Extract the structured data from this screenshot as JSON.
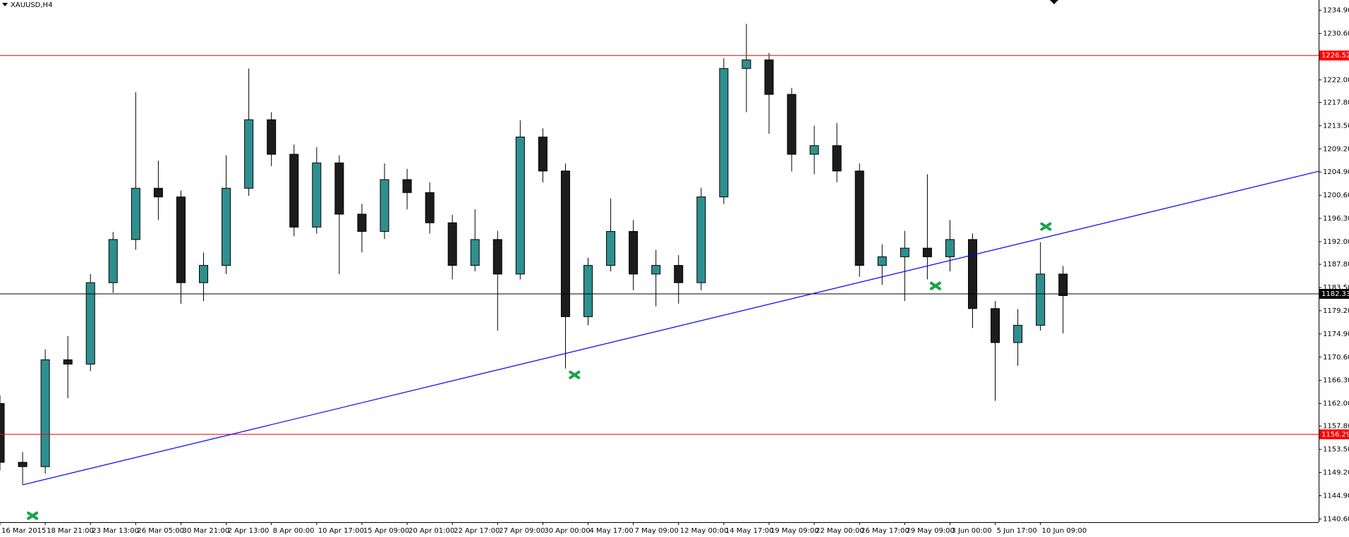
{
  "chart_data": {
    "type": "candlestick",
    "title": "XAUUSD,H4",
    "categories": [
      "16 Mar 2015",
      "18 Mar 21:00",
      "23 Mar 13:00",
      "26 Mar 05:00",
      "30 Mar 21:00",
      "2 Apr 13:00",
      "8 Apr 00:00",
      "10 Apr 17:00",
      "15 Apr 09:00",
      "20 Apr 01:00",
      "22 Apr 17:00",
      "27 Apr 09:00",
      "30 Apr 00:00",
      "4 May 17:00",
      "7 May 09:00",
      "12 May 00:00",
      "14 May 17:00",
      "19 May 09:00",
      "22 May 00:00",
      "26 May 17:00",
      "29 May 09:00",
      "3 Jun 00:00",
      "5 Jun 17:00",
      "10 Jun 09:00"
    ],
    "x": [
      0,
      0.5,
      1,
      1.5,
      2,
      2.5,
      3,
      3.5,
      4,
      4.5,
      5,
      5.5,
      6,
      6.5,
      7,
      7.5,
      8,
      8.5,
      9,
      9.5,
      10,
      10.5,
      11,
      11.5,
      12,
      12.5,
      13,
      13.5,
      14,
      14.5,
      15,
      15.5,
      16,
      16.5,
      17,
      17.5,
      18,
      18.5,
      19,
      19.5,
      20,
      20.5,
      21,
      21.5,
      22,
      22.5,
      23,
      23.5
    ],
    "open": [
      1162.0,
      1151.1,
      1150.3,
      1170.1,
      1169.3,
      1184.4,
      1192.4,
      1201.9,
      1200.3,
      1184.4,
      1187.6,
      1201.9,
      1214.6,
      1208.2,
      1194.7,
      1206.6,
      1197.1,
      1193.9,
      1203.5,
      1201.1,
      1195.5,
      1187.6,
      1192.4,
      1186.0,
      1211.4,
      1205.1,
      1178.1,
      1187.6,
      1193.9,
      1186.0,
      1187.6,
      1184.4,
      1200.3,
      1224.1,
      1225.7,
      1219.3,
      1208.2,
      1209.8,
      1205.1,
      1187.6,
      1189.2,
      1190.8,
      1189.2,
      1192.4,
      1179.6,
      1173.3,
      1176.5,
      1186.0
    ],
    "high": [
      1163.5,
      1153.0,
      1172.0,
      1174.5,
      1186.0,
      1193.8,
      1219.7,
      1207.0,
      1201.5,
      1190.0,
      1208.0,
      1224.1,
      1216.0,
      1210.0,
      1209.5,
      1208.0,
      1199.0,
      1206.5,
      1205.5,
      1203.0,
      1197.0,
      1198.0,
      1194.0,
      1214.5,
      1213.0,
      1206.5,
      1189.0,
      1200.0,
      1196.0,
      1190.5,
      1189.5,
      1202.0,
      1226.0,
      1232.4,
      1227.0,
      1220.5,
      1213.5,
      1214.0,
      1206.5,
      1191.5,
      1194.0,
      1204.5,
      1196.0,
      1193.5,
      1181.0,
      1179.5,
      1191.9,
      1187.5
    ],
    "low": [
      1149.6,
      1146.9,
      1149.0,
      1163.0,
      1168.0,
      1182.5,
      1190.5,
      1196.0,
      1180.5,
      1181.0,
      1186.0,
      1200.5,
      1206.0,
      1193.0,
      1193.5,
      1186.0,
      1190.0,
      1192.5,
      1198.0,
      1193.5,
      1185.0,
      1186.5,
      1175.5,
      1185.0,
      1203.0,
      1168.5,
      1176.5,
      1186.5,
      1183.0,
      1180.0,
      1180.5,
      1183.0,
      1199.0,
      1216.0,
      1212.0,
      1205.0,
      1204.5,
      1203.0,
      1185.5,
      1184.0,
      1181.0,
      1185.0,
      1186.5,
      1176.0,
      1162.5,
      1169.0,
      1175.5,
      1175.0
    ],
    "close": [
      1151.1,
      1150.3,
      1170.1,
      1169.3,
      1184.4,
      1192.4,
      1201.9,
      1200.3,
      1184.4,
      1187.6,
      1201.9,
      1214.6,
      1208.2,
      1194.7,
      1206.6,
      1197.1,
      1193.9,
      1203.5,
      1201.1,
      1195.5,
      1187.6,
      1192.4,
      1186.0,
      1211.4,
      1205.1,
      1178.1,
      1187.6,
      1193.9,
      1186.0,
      1187.6,
      1184.4,
      1200.3,
      1224.1,
      1225.7,
      1219.3,
      1208.2,
      1209.8,
      1205.1,
      1187.6,
      1189.2,
      1190.8,
      1189.2,
      1192.4,
      1179.6,
      1173.3,
      1176.5,
      1186.0,
      1182.0
    ],
    "up_color": "#2f8f8f",
    "down_color": "#1c1c1c",
    "xlim": [
      0,
      29.15
    ],
    "ylim": [
      1140.0,
      1236.8
    ],
    "yticks": [
      {
        "value": 1234.9,
        "label": "1234.90"
      },
      {
        "value": 1230.6,
        "label": "1230.60"
      },
      {
        "value": 1222.0,
        "label": "1222.00"
      },
      {
        "value": 1217.8,
        "label": "1217.80"
      },
      {
        "value": 1213.5,
        "label": "1213.50"
      },
      {
        "value": 1209.2,
        "label": "1209.20"
      },
      {
        "value": 1204.9,
        "label": "1204.90"
      },
      {
        "value": 1200.6,
        "label": "1200.60"
      },
      {
        "value": 1196.3,
        "label": "1196.30"
      },
      {
        "value": 1192.0,
        "label": "1192.00"
      },
      {
        "value": 1187.8,
        "label": "1187.80"
      },
      {
        "value": 1183.5,
        "label": "1183.50"
      },
      {
        "value": 1179.2,
        "label": "1179.20"
      },
      {
        "value": 1174.9,
        "label": "1174.90"
      },
      {
        "value": 1170.6,
        "label": "1170.60"
      },
      {
        "value": 1166.3,
        "label": "1166.30"
      },
      {
        "value": 1162.0,
        "label": "1162.00"
      },
      {
        "value": 1157.8,
        "label": "1157.80"
      },
      {
        "value": 1153.5,
        "label": "1153.50"
      },
      {
        "value": 1149.2,
        "label": "1149.20"
      },
      {
        "value": 1144.9,
        "label": "1144.90"
      },
      {
        "value": 1140.6,
        "label": "1140.60"
      }
    ],
    "hlines": [
      {
        "value": 1226.52,
        "color": "#ff0000"
      },
      {
        "value": 1156.29,
        "color": "#ff0000"
      },
      {
        "value": 1182.33,
        "color": "#000000"
      }
    ],
    "trendline": {
      "x": [
        0.51,
        29.15
      ],
      "y": [
        1146.95,
        1205.05
      ],
      "color": "#0000ff"
    },
    "markers": {
      "x": [
        0.72,
        12.7,
        20.68,
        23.12
      ],
      "y": [
        1141.2,
        1167.3,
        1183.8,
        1194.8
      ],
      "color": "#1aa34a"
    }
  }
}
